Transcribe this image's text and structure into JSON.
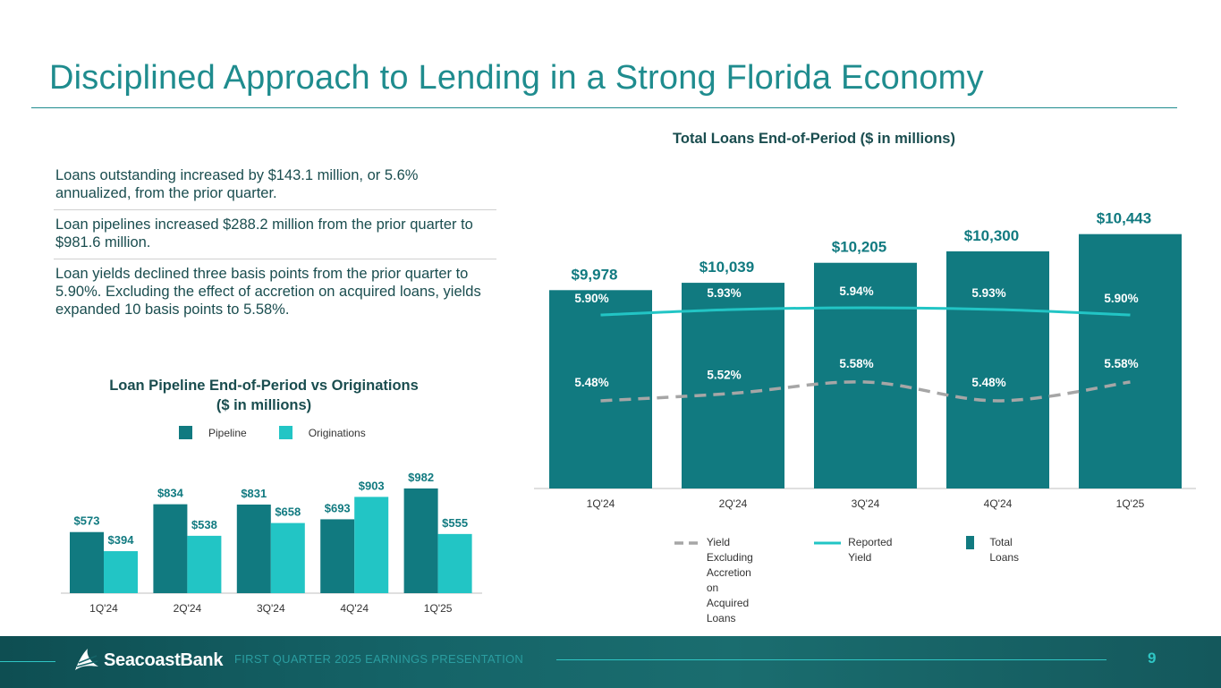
{
  "title": "Disciplined Approach to Lending in a Strong Florida Economy",
  "bullets": [
    "Loans outstanding increased by $143.1 million, or 5.6% annualized, from the prior quarter.",
    "Loan pipelines increased $288.2 million from the prior quarter to $981.6 million.",
    "Loan yields declined three basis points from the prior quarter to 5.90%. Excluding the effect of accretion on acquired loans, yields expanded 10 basis points to 5.58%."
  ],
  "colors": {
    "title": "#1f8c8e",
    "dark_teal": "#117a80",
    "light_teal": "#22c5c5",
    "grey_dash": "#a6a6a6",
    "text": "#1a4d4f"
  },
  "chart_data": [
    {
      "type": "bar",
      "title_line1": "Loan Pipeline End-of-Period vs Originations",
      "title_line2": "($ in millions)",
      "categories": [
        "1Q'24",
        "2Q'24",
        "3Q'24",
        "4Q'24",
        "1Q'25"
      ],
      "series": [
        {
          "name": "Pipeline",
          "values": [
            573,
            834,
            831,
            693,
            982
          ],
          "labels": [
            "$573",
            "$834",
            "$831",
            "$693",
            "$982"
          ],
          "color": "#117a80"
        },
        {
          "name": "Originations",
          "values": [
            394,
            538,
            658,
            903,
            555
          ],
          "labels": [
            "$394",
            "$538",
            "$658",
            "$903",
            "$555"
          ],
          "color": "#22c5c5"
        }
      ],
      "ylim": [
        0,
        1200
      ]
    },
    {
      "type": "bar",
      "title": "Total Loans End-of-Period ($ in millions)",
      "categories": [
        "1Q'24",
        "2Q'24",
        "3Q'24",
        "4Q'24",
        "1Q'25"
      ],
      "series": [
        {
          "name": "Total Loans",
          "type": "bar",
          "values": [
            9978,
            10039,
            10205,
            10300,
            10443
          ],
          "labels": [
            "$9,978",
            "$10,039",
            "$10,205",
            "$10,300",
            "$10,443"
          ],
          "color": "#117a80"
        },
        {
          "name": "Reported Yield",
          "type": "line",
          "values": [
            5.9,
            5.93,
            5.94,
            5.93,
            5.9
          ],
          "labels": [
            "5.90%",
            "5.93%",
            "5.94%",
            "5.93%",
            "5.90%"
          ],
          "color": "#22c5c5"
        },
        {
          "name": "Yield Excluding Accretion on Acquired Loans",
          "type": "line",
          "style": "dashed",
          "values": [
            5.48,
            5.52,
            5.58,
            5.48,
            5.58
          ],
          "labels": [
            "5.48%",
            "5.52%",
            "5.58%",
            "5.48%",
            "5.58%"
          ],
          "color": "#a6a6a6"
        }
      ],
      "legend": {
        "yield_excl_lines": [
          "Yield Excluding",
          "Accretion on",
          "Acquired Loans"
        ],
        "reported": "Reported Yield",
        "total": "Total Loans"
      }
    }
  ],
  "footer": {
    "logo": "SeacoastBank",
    "caption": "FIRST QUARTER 2025 EARNINGS PRESENTATION",
    "page": "9"
  }
}
